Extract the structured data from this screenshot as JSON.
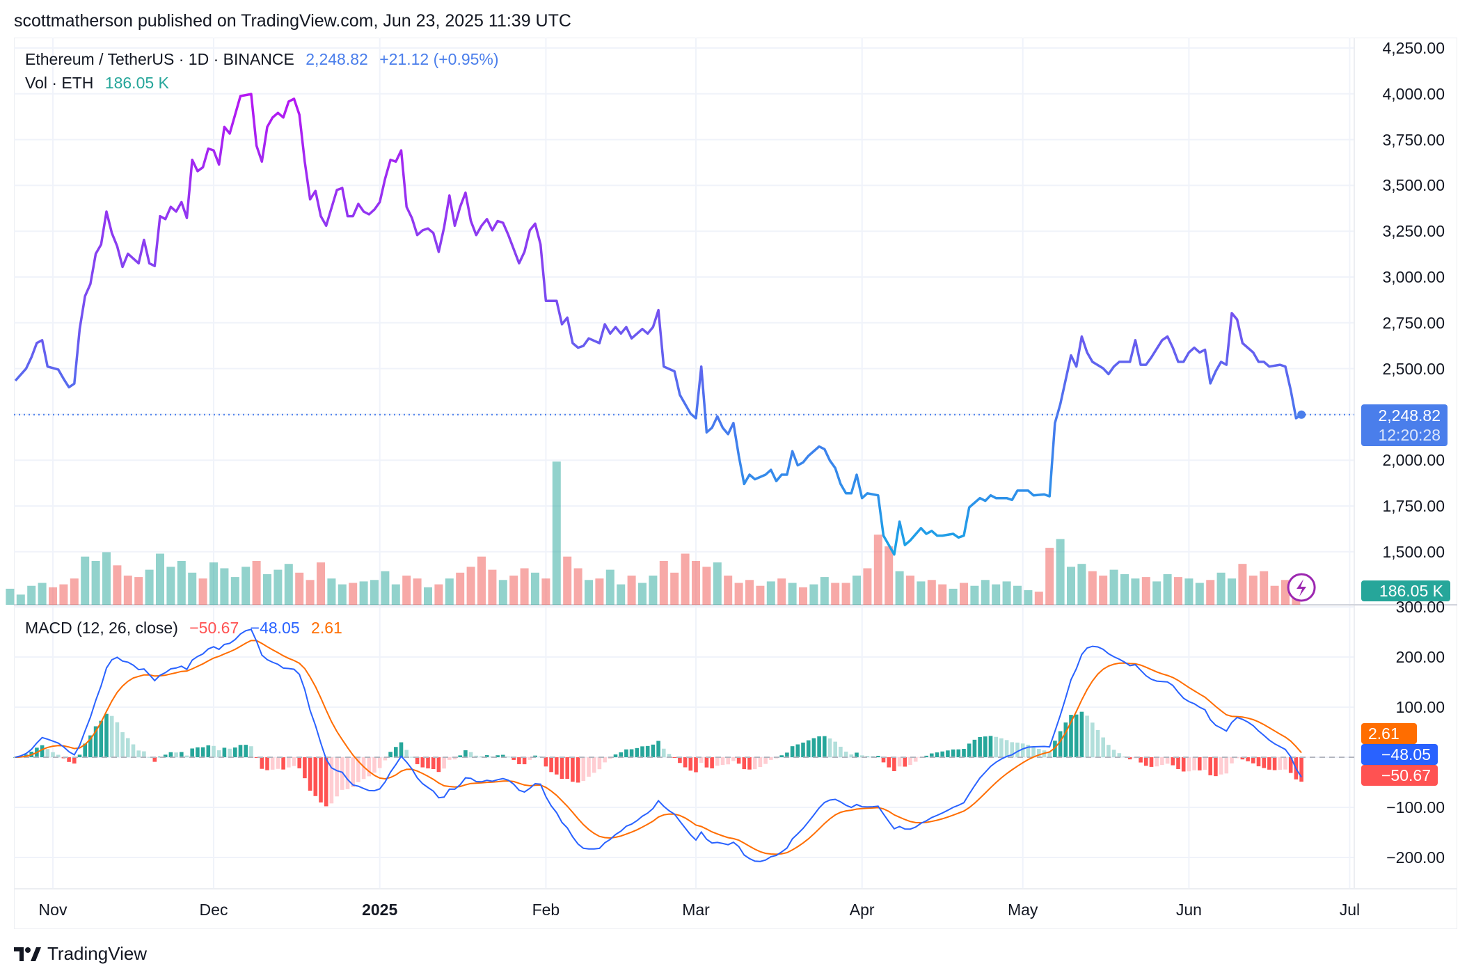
{
  "header": {
    "published": "scottmatherson published on TradingView.com, Jun 23, 2025 11:39 UTC"
  },
  "legend": {
    "symbol": "Ethereum / TetherUS · 1D · BINANCE",
    "price": "2,248.82",
    "change": "+21.12 (+0.95%)",
    "vol_label": "Vol · ETH",
    "vol_value": "186.05 K",
    "macd_label": "MACD (12, 26, close)",
    "macd_hist": "−50.67",
    "macd_line": "−48.05",
    "macd_signal": "2.61"
  },
  "price_axis": {
    "ticks": [
      "4,250.00",
      "4,000.00",
      "3,750.00",
      "3,500.00",
      "3,250.00",
      "3,000.00",
      "2,750.00",
      "2,500.00",
      "2,000.00",
      "1,750.00",
      "1,500.00"
    ],
    "last_price_label": "2,248.82",
    "countdown": "12:20:28",
    "volume_label": "186.05 K"
  },
  "macd_axis": {
    "ticks": [
      "300.00",
      "200.00",
      "100.00",
      "−100.00",
      "−200.00"
    ],
    "signal_label": "2.61",
    "macd_label": "−48.05",
    "hist_label": "−50.67"
  },
  "time_axis": [
    {
      "label": "Nov",
      "day": 0,
      "bold": false
    },
    {
      "label": "Dec",
      "day": 30,
      "bold": false
    },
    {
      "label": "2025",
      "day": 61,
      "bold": true
    },
    {
      "label": "Feb",
      "day": 92,
      "bold": false
    },
    {
      "label": "Mar",
      "day": 120,
      "bold": false
    },
    {
      "label": "Apr",
      "day": 151,
      "bold": false
    },
    {
      "label": "May",
      "day": 181,
      "bold": false
    },
    {
      "label": "Jun",
      "day": 212,
      "bold": false
    },
    {
      "label": "Jul",
      "day": 242,
      "bold": false
    }
  ],
  "brand": "TradingView",
  "colors": {
    "up": "#26a69a",
    "down": "#ef5350",
    "macd": "#2962ff",
    "signal": "#ff6d00",
    "price_box": "#4a7eeb",
    "hist_neg": "#ff5252"
  },
  "chart_data": {
    "type": "line",
    "title": "Ethereum / TetherUS · 1D · BINANCE",
    "x_unit": "days since 2024-11-01",
    "ylim": [
      1400,
      4300
    ],
    "last_price": 2248.82,
    "price_points": [
      [
        -7,
        2434
      ],
      [
        -5,
        2500
      ],
      [
        -4,
        2562
      ],
      [
        -3,
        2640
      ],
      [
        -2,
        2655
      ],
      [
        -1,
        2511
      ],
      [
        1,
        2495
      ],
      [
        2,
        2444
      ],
      [
        3,
        2398
      ],
      [
        4,
        2418
      ],
      [
        5,
        2716
      ],
      [
        6,
        2896
      ],
      [
        7,
        2962
      ],
      [
        8,
        3127
      ],
      [
        9,
        3178
      ],
      [
        10,
        3357
      ],
      [
        11,
        3240
      ],
      [
        12,
        3168
      ],
      [
        13,
        3055
      ],
      [
        14,
        3127
      ],
      [
        16,
        3075
      ],
      [
        17,
        3203
      ],
      [
        18,
        3075
      ],
      [
        19,
        3060
      ],
      [
        20,
        3332
      ],
      [
        21,
        3316
      ],
      [
        22,
        3383
      ],
      [
        23,
        3357
      ],
      [
        24,
        3409
      ],
      [
        25,
        3322
      ],
      [
        26,
        3640
      ],
      [
        27,
        3578
      ],
      [
        28,
        3599
      ],
      [
        29,
        3701
      ],
      [
        30,
        3691
      ],
      [
        31,
        3614
      ],
      [
        32,
        3819
      ],
      [
        33,
        3783
      ],
      [
        35,
        3988
      ],
      [
        36,
        3993
      ],
      [
        37,
        3999
      ],
      [
        38,
        3717
      ],
      [
        39,
        3630
      ],
      [
        40,
        3819
      ],
      [
        41,
        3871
      ],
      [
        42,
        3896
      ],
      [
        43,
        3871
      ],
      [
        44,
        3958
      ],
      [
        45,
        3973
      ],
      [
        46,
        3886
      ],
      [
        47,
        3630
      ],
      [
        48,
        3424
      ],
      [
        49,
        3470
      ],
      [
        50,
        3332
      ],
      [
        51,
        3280
      ],
      [
        53,
        3475
      ],
      [
        54,
        3486
      ],
      [
        55,
        3332
      ],
      [
        56,
        3332
      ],
      [
        57,
        3399
      ],
      [
        58,
        3357
      ],
      [
        59,
        3342
      ],
      [
        60,
        3368
      ],
      [
        61,
        3409
      ],
      [
        62,
        3537
      ],
      [
        63,
        3640
      ],
      [
        64,
        3630
      ],
      [
        65,
        3691
      ],
      [
        66,
        3383
      ],
      [
        67,
        3322
      ],
      [
        68,
        3229
      ],
      [
        69,
        3255
      ],
      [
        70,
        3265
      ],
      [
        71,
        3240
      ],
      [
        72,
        3137
      ],
      [
        73,
        3270
      ],
      [
        74,
        3445
      ],
      [
        75,
        3280
      ],
      [
        76,
        3383
      ],
      [
        77,
        3460
      ],
      [
        78,
        3306
      ],
      [
        79,
        3229
      ],
      [
        80,
        3280
      ],
      [
        81,
        3316
      ],
      [
        82,
        3255
      ],
      [
        83,
        3306
      ],
      [
        84,
        3296
      ],
      [
        85,
        3229
      ],
      [
        86,
        3152
      ],
      [
        87,
        3075
      ],
      [
        88,
        3137
      ],
      [
        89,
        3255
      ],
      [
        90,
        3291
      ],
      [
        91,
        3178
      ],
      [
        92,
        2870
      ],
      [
        94,
        2870
      ],
      [
        95,
        2742
      ],
      [
        96,
        2778
      ],
      [
        97,
        2639
      ],
      [
        98,
        2614
      ],
      [
        99,
        2624
      ],
      [
        100,
        2665
      ],
      [
        102,
        2639
      ],
      [
        103,
        2742
      ],
      [
        104,
        2691
      ],
      [
        105,
        2727
      ],
      [
        106,
        2691
      ],
      [
        107,
        2727
      ],
      [
        108,
        2665
      ],
      [
        110,
        2716
      ],
      [
        111,
        2691
      ],
      [
        112,
        2727
      ],
      [
        113,
        2819
      ],
      [
        114,
        2511
      ],
      [
        116,
        2485
      ],
      [
        117,
        2357
      ],
      [
        118,
        2306
      ],
      [
        119,
        2254
      ],
      [
        120,
        2229
      ],
      [
        121,
        2511
      ],
      [
        122,
        2152
      ],
      [
        123,
        2177
      ],
      [
        124,
        2239
      ],
      [
        125,
        2177
      ],
      [
        126,
        2142
      ],
      [
        127,
        2203
      ],
      [
        128,
        2024
      ],
      [
        129,
        1870
      ],
      [
        130,
        1921
      ],
      [
        131,
        1896
      ],
      [
        133,
        1921
      ],
      [
        134,
        1947
      ],
      [
        135,
        1886
      ],
      [
        136,
        1921
      ],
      [
        137,
        1921
      ],
      [
        138,
        2049
      ],
      [
        139,
        1972
      ],
      [
        140,
        1988
      ],
      [
        141,
        2024
      ],
      [
        143,
        2075
      ],
      [
        144,
        2060
      ],
      [
        145,
        1998
      ],
      [
        146,
        1957
      ],
      [
        147,
        1870
      ],
      [
        148,
        1819
      ],
      [
        149,
        1819
      ],
      [
        150,
        1921
      ],
      [
        151,
        1793
      ],
      [
        152,
        1819
      ],
      [
        154,
        1808
      ],
      [
        155,
        1588
      ],
      [
        156,
        1537
      ],
      [
        157,
        1485
      ],
      [
        158,
        1665
      ],
      [
        159,
        1537
      ],
      [
        160,
        1562
      ],
      [
        162,
        1629
      ],
      [
        163,
        1598
      ],
      [
        164,
        1614
      ],
      [
        165,
        1588
      ],
      [
        166,
        1588
      ],
      [
        168,
        1598
      ],
      [
        169,
        1578
      ],
      [
        170,
        1588
      ],
      [
        171,
        1742
      ],
      [
        173,
        1793
      ],
      [
        174,
        1778
      ],
      [
        175,
        1808
      ],
      [
        176,
        1793
      ],
      [
        178,
        1793
      ],
      [
        179,
        1783
      ],
      [
        180,
        1834
      ],
      [
        182,
        1834
      ],
      [
        183,
        1808
      ],
      [
        185,
        1813
      ],
      [
        186,
        1803
      ],
      [
        187,
        2203
      ],
      [
        188,
        2306
      ],
      [
        190,
        2572
      ],
      [
        191,
        2511
      ],
      [
        192,
        2675
      ],
      [
        193,
        2588
      ],
      [
        194,
        2537
      ],
      [
        196,
        2501
      ],
      [
        197,
        2470
      ],
      [
        198,
        2511
      ],
      [
        199,
        2537
      ],
      [
        201,
        2537
      ],
      [
        202,
        2655
      ],
      [
        203,
        2521
      ],
      [
        204,
        2521
      ],
      [
        205,
        2562
      ],
      [
        207,
        2655
      ],
      [
        208,
        2675
      ],
      [
        209,
        2614
      ],
      [
        210,
        2537
      ],
      [
        211,
        2537
      ],
      [
        212,
        2588
      ],
      [
        213,
        2614
      ],
      [
        214,
        2588
      ],
      [
        215,
        2603
      ],
      [
        216,
        2419
      ],
      [
        217,
        2485
      ],
      [
        218,
        2537
      ],
      [
        219,
        2521
      ],
      [
        220,
        2803
      ],
      [
        221,
        2768
      ],
      [
        222,
        2639
      ],
      [
        224,
        2588
      ],
      [
        225,
        2537
      ],
      [
        226,
        2537
      ],
      [
        227,
        2511
      ],
      [
        229,
        2521
      ],
      [
        230,
        2511
      ],
      [
        231,
        2383
      ],
      [
        232,
        2229
      ],
      [
        233,
        2249
      ]
    ],
    "volume_start_day": -8,
    "volume_step_days": 2,
    "volume_k": [
      110,
      70,
      130,
      150,
      120,
      140,
      180,
      330,
      300,
      360,
      270,
      200,
      190,
      240,
      350,
      260,
      300,
      220,
      180,
      290,
      250,
      190,
      260,
      300,
      210,
      240,
      280,
      220,
      170,
      290,
      180,
      140,
      150,
      160,
      170,
      230,
      140,
      200,
      180,
      120,
      140,
      180,
      220,
      260,
      330,
      240,
      170,
      200,
      250,
      220,
      180,
      980,
      330,
      250,
      170,
      180,
      240,
      140,
      200,
      150,
      200,
      300,
      220,
      350,
      300,
      260,
      290,
      200,
      150,
      170,
      130,
      160,
      180,
      150,
      120,
      140,
      190,
      150,
      150,
      200,
      250,
      480,
      400,
      230,
      200,
      160,
      170,
      140,
      110,
      150,
      130,
      170,
      140,
      160,
      130,
      100,
      90,
      390,
      450,
      260,
      280,
      230,
      200,
      240,
      210,
      180,
      190,
      160,
      210,
      190,
      180,
      150,
      170,
      220,
      180,
      280,
      200,
      230,
      130,
      170,
      50
    ],
    "macd": {
      "fast": 12,
      "slow": 26,
      "source": "close",
      "last_macd": -48.05,
      "last_signal": 2.61,
      "last_hist": -50.67,
      "ylim": [
        -250,
        300
      ]
    }
  }
}
